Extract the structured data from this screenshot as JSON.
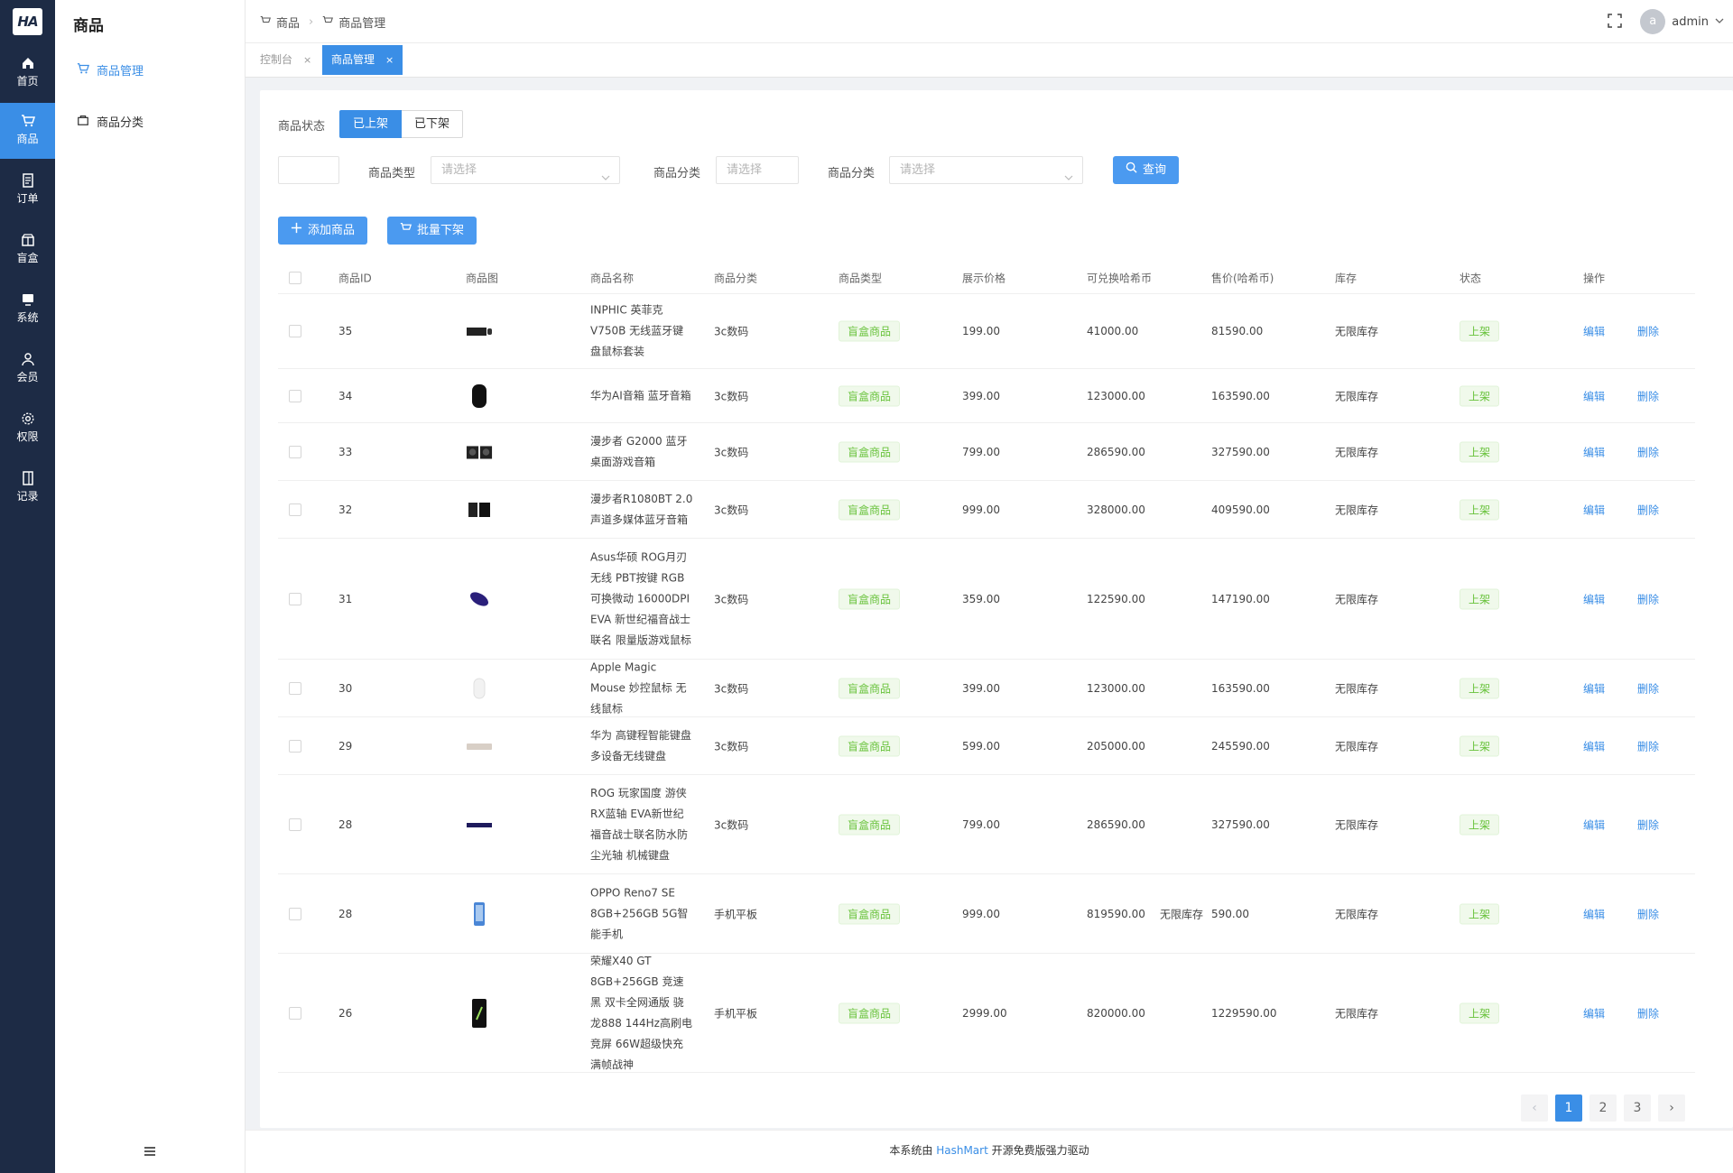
{
  "rail": {
    "logo": "HA",
    "items": [
      {
        "label": "首页",
        "icon": "home-icon"
      },
      {
        "label": "商品",
        "icon": "cart-icon",
        "active": true
      },
      {
        "label": "订单",
        "icon": "order-icon"
      },
      {
        "label": "盲盒",
        "icon": "box-icon"
      },
      {
        "label": "系统",
        "icon": "monitor-icon"
      },
      {
        "label": "会员",
        "icon": "user-icon"
      },
      {
        "label": "权限",
        "icon": "gear-icon"
      },
      {
        "label": "记录",
        "icon": "record-icon"
      }
    ]
  },
  "sidebar": {
    "title": "商品",
    "items": [
      {
        "label": "商品管理",
        "icon": "cart-icon",
        "active": true
      },
      {
        "label": "商品分类",
        "icon": "bag-icon"
      }
    ]
  },
  "header": {
    "breadcrumb": [
      "商品",
      "商品管理"
    ],
    "user": {
      "avatar": "a",
      "name": "admin"
    }
  },
  "tabs": [
    {
      "label": "控制台",
      "close": "×"
    },
    {
      "label": "商品管理",
      "close": "×",
      "active": true
    }
  ],
  "filters": {
    "status_label": "商品状态",
    "status_options": [
      "已上架",
      "已下架"
    ],
    "type_label": "商品类型",
    "type_placeholder": "请选择",
    "category_label": "商品分类",
    "category_placeholder": "请选择",
    "category2_label": "商品分类",
    "category2_placeholder": "请选择",
    "query_button": "查询"
  },
  "actions": {
    "add": "添加商品",
    "batch_off": "批量下架"
  },
  "table": {
    "columns": [
      "商品ID",
      "商品图",
      "商品名称",
      "商品分类",
      "商品类型",
      "展示价格",
      "可兑换哈希币",
      "售价(哈希币)",
      "库存",
      "状态",
      "操作"
    ],
    "rows": [
      {
        "id": "35",
        "name": "INPHIC 英菲克 V750B 无线蓝牙键盘鼠标套装",
        "category": "3c数码",
        "type": "盲盒商品",
        "price": "199.00",
        "coins": "41000.00",
        "sale": "81590.00",
        "stock": "无限库存",
        "status": "上架",
        "edit": "编辑",
        "del": "删除"
      },
      {
        "id": "34",
        "name": "华为AI音箱 蓝牙音箱",
        "category": "3c数码",
        "type": "盲盒商品",
        "price": "399.00",
        "coins": "123000.00",
        "sale": "163590.00",
        "stock": "无限库存",
        "status": "上架",
        "edit": "编辑",
        "del": "删除"
      },
      {
        "id": "33",
        "name": "漫步者 G2000 蓝牙桌面游戏音箱",
        "category": "3c数码",
        "type": "盲盒商品",
        "price": "799.00",
        "coins": "286590.00",
        "sale": "327590.00",
        "stock": "无限库存",
        "status": "上架",
        "edit": "编辑",
        "del": "删除"
      },
      {
        "id": "32",
        "name": "漫步者R1080BT 2.0声道多媒体蓝牙音箱",
        "category": "3c数码",
        "type": "盲盒商品",
        "price": "999.00",
        "coins": "328000.00",
        "sale": "409590.00",
        "stock": "无限库存",
        "status": "上架",
        "edit": "编辑",
        "del": "删除"
      },
      {
        "id": "31",
        "name": "Asus华硕 ROG月刃无线 PBT按键 RGB可换微动 16000DPI EVA 新世纪福音战士联名 限量版游戏鼠标",
        "category": "3c数码",
        "type": "盲盒商品",
        "price": "359.00",
        "coins": "122590.00",
        "sale": "147190.00",
        "stock": "无限库存",
        "status": "上架",
        "edit": "编辑",
        "del": "删除"
      },
      {
        "id": "30",
        "name": "Apple Magic Mouse 妙控鼠标 无线鼠标",
        "category": "3c数码",
        "type": "盲盒商品",
        "price": "399.00",
        "coins": "123000.00",
        "sale": "163590.00",
        "stock": "无限库存",
        "status": "上架",
        "edit": "编辑",
        "del": "删除"
      },
      {
        "id": "29",
        "name": "华为 高键程智能键盘 多设备无线键盘",
        "category": "3c数码",
        "type": "盲盒商品",
        "price": "599.00",
        "coins": "205000.00",
        "sale": "245590.00",
        "stock": "无限库存",
        "status": "上架",
        "edit": "编辑",
        "del": "删除"
      },
      {
        "id": "28",
        "name": "ROG 玩家国度 游侠RX蓝轴 EVA新世纪福音战士联名防水防尘光轴 机械键盘",
        "category": "3c数码",
        "type": "盲盒商品",
        "price": "799.00",
        "coins": "286590.00",
        "sale": "327590.00",
        "stock": "无限库存",
        "status": "上架",
        "edit": "编辑",
        "del": "删除"
      },
      {
        "id": "28",
        "name": "OPPO Reno7 SE 8GB+256GB 5G智能手机",
        "category": "手机平板",
        "type": "盲盒商品",
        "price": "999.00",
        "coins": "819590.00",
        "overlay_stock": "无限库存",
        "sale": "590.00",
        "stock": "无限库存",
        "status": "上架",
        "edit": "编辑",
        "del": "删除"
      },
      {
        "id": "26",
        "name": "荣耀X40 GT 8GB+256GB 竞速黑 双卡全网通版 骁龙888 144Hz高刷电竞屏 66W超级快充 满帧战神",
        "category": "手机平板",
        "type": "盲盒商品",
        "price": "2999.00",
        "coins": "820000.00",
        "sale": "1229590.00",
        "stock": "无限库存",
        "status": "上架",
        "edit": "编辑",
        "del": "删除"
      }
    ]
  },
  "pagination": {
    "prev": "‹",
    "pages": [
      "1",
      "2",
      "3"
    ],
    "current": "1",
    "next": "›"
  },
  "footer": {
    "prefix": "本系统由 ",
    "brand": "HashMart",
    "suffix": " 开源免费版强力驱动"
  },
  "colors": {
    "primary": "#3a8ee6",
    "rail": "#1d2b45",
    "success": "#67c23a"
  }
}
